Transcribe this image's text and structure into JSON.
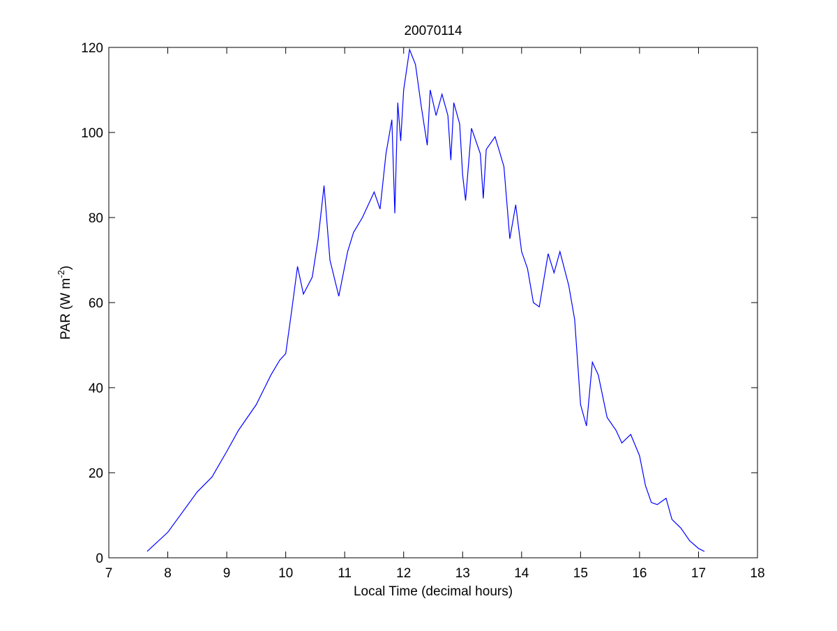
{
  "chart_data": {
    "type": "line",
    "title": "20070114",
    "xlabel": "Local Time (decimal hours)",
    "ylabel": {
      "text": "PAR (W m",
      "superscript": "-2",
      "suffix": ")"
    },
    "x": [
      7.65,
      8.0,
      8.5,
      8.75,
      9.0,
      9.2,
      9.5,
      9.75,
      9.9,
      10.0,
      10.1,
      10.2,
      10.3,
      10.45,
      10.55,
      10.65,
      10.75,
      10.9,
      11.05,
      11.15,
      11.3,
      11.5,
      11.6,
      11.7,
      11.8,
      11.85,
      11.9,
      11.95,
      12.0,
      12.1,
      12.2,
      12.3,
      12.4,
      12.45,
      12.55,
      12.65,
      12.75,
      12.8,
      12.85,
      12.95,
      13.0,
      13.05,
      13.15,
      13.3,
      13.35,
      13.4,
      13.55,
      13.7,
      13.8,
      13.9,
      14.0,
      14.1,
      14.2,
      14.3,
      14.45,
      14.55,
      14.65,
      14.8,
      14.9,
      15.0,
      15.1,
      15.2,
      15.3,
      15.45,
      15.6,
      15.7,
      15.85,
      16.0,
      16.1,
      16.2,
      16.3,
      16.45,
      16.55,
      16.7,
      16.85,
      17.0,
      17.1
    ],
    "series": [
      {
        "name": "PAR",
        "color": "#0000ff",
        "values": [
          1.5,
          6,
          15.5,
          19,
          25,
          30,
          36,
          43,
          46.5,
          48,
          58,
          68.5,
          62,
          66,
          75,
          87.5,
          70,
          61.5,
          72,
          76.5,
          80,
          86,
          82,
          95,
          103,
          81,
          107,
          98,
          110,
          119.5,
          116,
          106,
          97,
          110,
          104,
          109,
          104,
          93.5,
          107,
          102,
          90,
          84,
          101,
          95,
          84.5,
          96,
          99,
          92,
          75,
          83,
          72,
          68,
          60,
          59,
          71.5,
          67,
          72,
          64,
          56,
          36,
          31,
          46,
          43,
          33,
          30,
          27,
          29,
          24,
          17,
          13,
          12.5,
          14,
          9,
          7,
          4,
          2.2,
          1.5
        ]
      }
    ],
    "xlim": [
      7,
      18
    ],
    "xticks": [
      7,
      8,
      9,
      10,
      11,
      12,
      13,
      14,
      15,
      16,
      17,
      18
    ],
    "ylim": [
      0,
      120
    ],
    "yticks": [
      0,
      20,
      40,
      60,
      80,
      100,
      120
    ],
    "grid": false
  }
}
